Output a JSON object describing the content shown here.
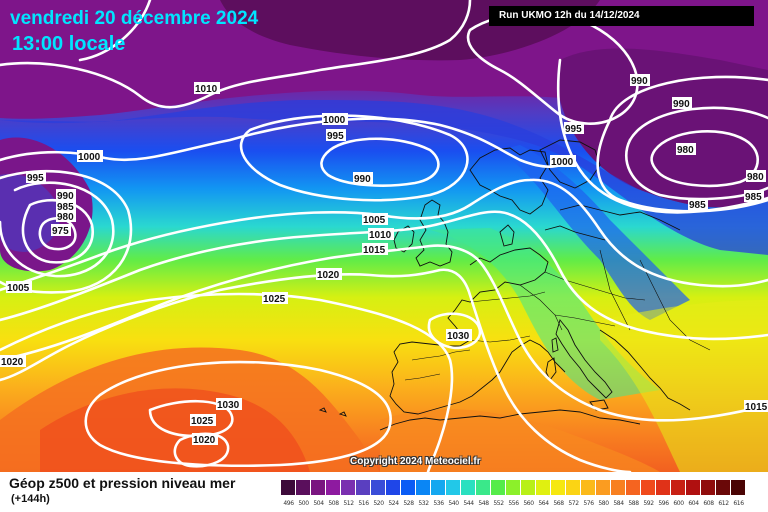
{
  "header": {
    "date": "vendredi 20 décembre 2024",
    "time": "13:00 locale",
    "run": "Run UKMO 12h du 14/12/2024"
  },
  "copyright": "Copyright 2024 Meteociel.fr",
  "footer": {
    "title": "Géop z500 et pression niveau mer",
    "subtitle": "(+144h)"
  },
  "map": {
    "pressure_labels": [
      "1000",
      "1010",
      "990",
      "995",
      "1000",
      "995",
      "990",
      "985",
      "980",
      "975",
      "1000",
      "990",
      "990",
      "995",
      "1000",
      "980",
      "980",
      "985",
      "985",
      "1005",
      "1010",
      "1015",
      "1020",
      "1025",
      "1030",
      "1005",
      "1020",
      "1030",
      "1025",
      "1020",
      "1015"
    ]
  },
  "legend": {
    "values": [
      "496",
      "500",
      "504",
      "508",
      "512",
      "516",
      "520",
      "524",
      "528",
      "532",
      "536",
      "540",
      "544",
      "548",
      "552",
      "556",
      "560",
      "564",
      "568",
      "572",
      "576",
      "580",
      "584",
      "588",
      "592",
      "596",
      "600",
      "604",
      "608",
      "612",
      "616"
    ],
    "colors": [
      "#3d0a3a",
      "#5a0f5c",
      "#7a1580",
      "#8e1aa0",
      "#7a2fb0",
      "#5a3fc0",
      "#3a4dd8",
      "#1f46e8",
      "#0a5cf5",
      "#0a86f5",
      "#14a8f0",
      "#22c8e8",
      "#2ae0c0",
      "#3ae88a",
      "#55ec4a",
      "#8cf02a",
      "#b8f018",
      "#e0f010",
      "#f6e810",
      "#fbd414",
      "#fbba1a",
      "#fb9c20",
      "#f88020",
      "#f56420",
      "#f04a1c",
      "#e03218",
      "#c82014",
      "#b01010",
      "#900c0c",
      "#6a0808",
      "#4a0404"
    ]
  }
}
